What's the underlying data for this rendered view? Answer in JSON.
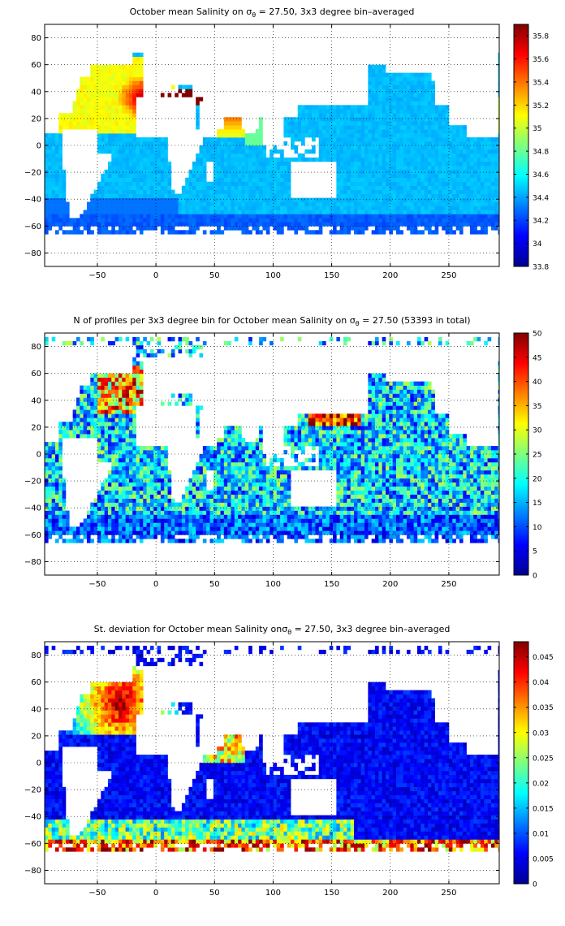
{
  "x_axis": {
    "ticks": [
      -50,
      0,
      50,
      100,
      150,
      200,
      250
    ],
    "labels": [
      "−50",
      "0",
      "50",
      "100",
      "150",
      "200",
      "250"
    ],
    "range": [
      -95,
      293
    ]
  },
  "y_axis": {
    "ticks": [
      -80,
      -60,
      -40,
      -20,
      0,
      20,
      40,
      60,
      80
    ],
    "labels": [
      "−80",
      "−60",
      "−40",
      "−20",
      "0",
      "20",
      "40",
      "60",
      "80"
    ],
    "range": [
      -90,
      90
    ]
  },
  "grid": "dotted",
  "colormap": "jet",
  "panels": [
    {
      "id": "mean",
      "title_pre": "October mean Salinity on ",
      "title_sym": "σ",
      "title_sub": "θ",
      "title_post": " = 27.50, 3x3 degree bin–averaged",
      "colorbar": {
        "range": [
          33.8,
          35.9
        ],
        "ticks": [
          33.8,
          34,
          34.2,
          34.4,
          34.6,
          34.8,
          35,
          35.2,
          35.4,
          35.6,
          35.8
        ],
        "labels": [
          "33.8",
          "34",
          "34.2",
          "34.4",
          "34.6",
          "34.8",
          "35",
          "35.2",
          "35.4",
          "35.6",
          "35.8"
        ]
      }
    },
    {
      "id": "count",
      "title_pre": "N of profiles per 3x3 degree bin for October mean Salinity on ",
      "title_sym": "σ",
      "title_sub": "θ",
      "title_post": " = 27.50 (53393 in total)",
      "colorbar": {
        "range": [
          0,
          50
        ],
        "ticks": [
          0,
          5,
          10,
          15,
          20,
          25,
          30,
          35,
          40,
          45,
          50
        ],
        "labels": [
          "0",
          "5",
          "10",
          "15",
          "20",
          "25",
          "30",
          "35",
          "40",
          "45",
          "50"
        ]
      }
    },
    {
      "id": "std",
      "title_pre": "St. deviation for October mean Salinity on",
      "title_sym": "σ",
      "title_sub": "θ",
      "title_post": " = 27.50, 3x3 degree bin–averaged",
      "colorbar": {
        "range": [
          0,
          0.048
        ],
        "ticks": [
          0,
          0.005,
          0.01,
          0.015,
          0.02,
          0.025,
          0.03,
          0.035,
          0.04,
          0.045
        ],
        "labels": [
          "0",
          "0.005",
          "0.01",
          "0.015",
          "0.02",
          "0.025",
          "0.03",
          "0.035",
          "0.04",
          "0.045"
        ]
      }
    }
  ]
}
